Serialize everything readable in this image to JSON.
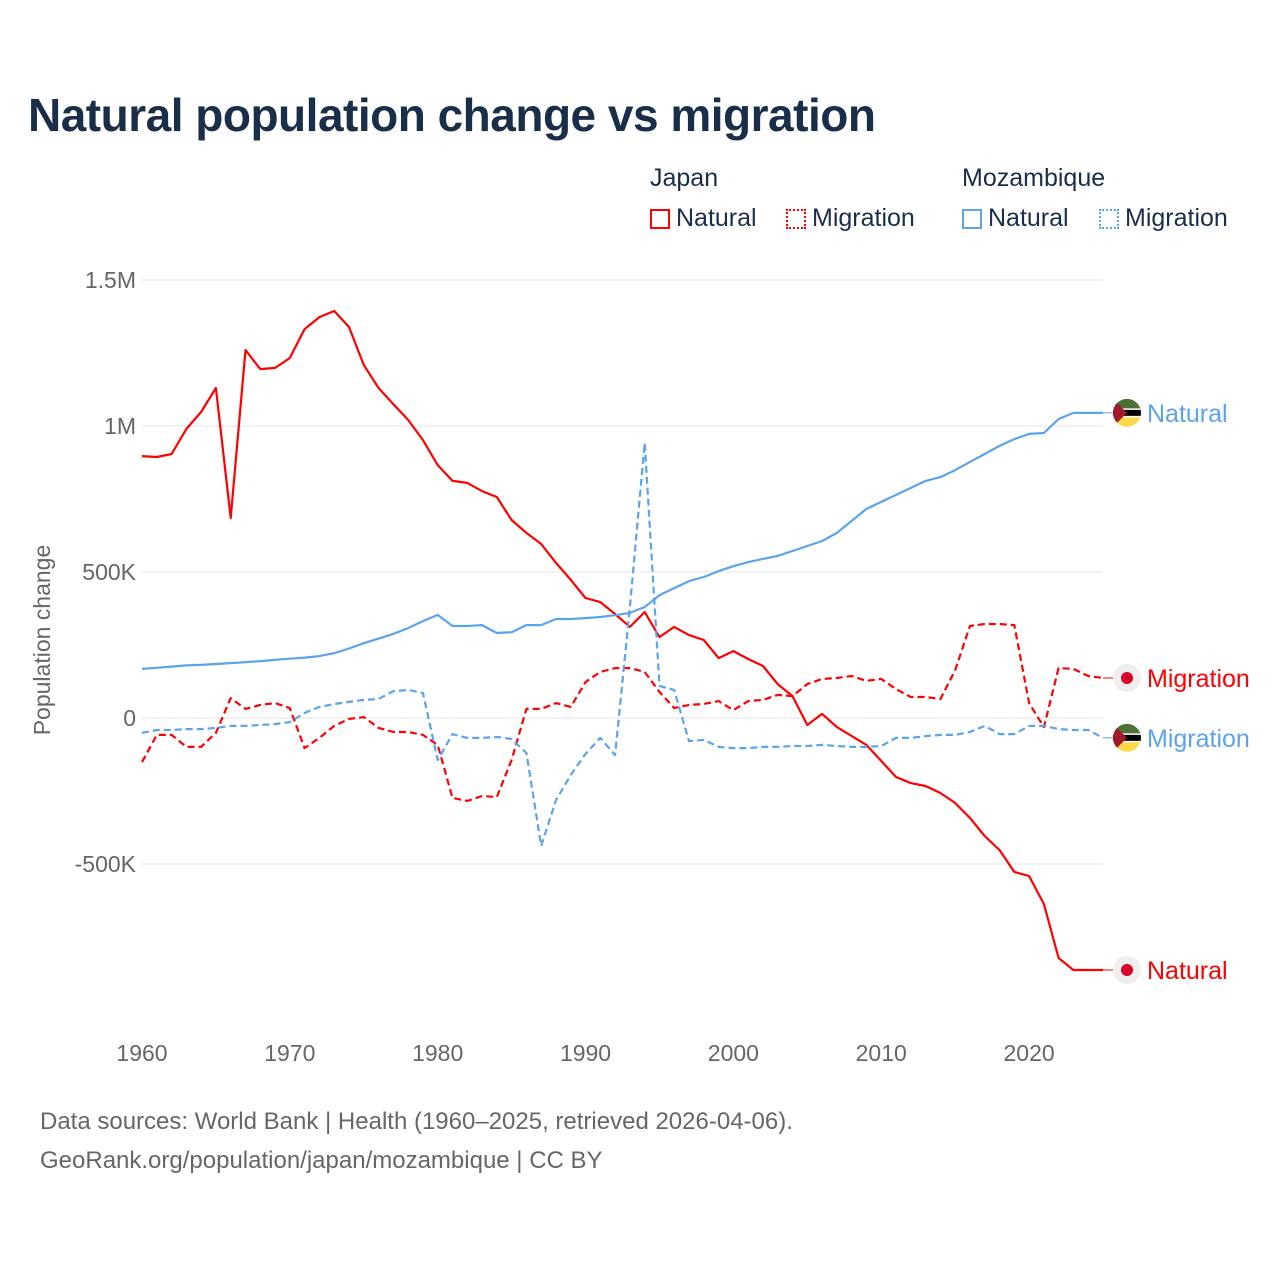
{
  "chart_data": {
    "type": "line",
    "title": "Natural population change vs migration",
    "xlabel": "",
    "ylabel": "Population change",
    "value_unit": "thousands",
    "xlim": [
      1960,
      2025
    ],
    "ylim": [
      -1000,
      1500
    ],
    "grid": true,
    "yticks": [
      {
        "v": 1500,
        "label": "1.5M"
      },
      {
        "v": 1000,
        "label": "1M"
      },
      {
        "v": 500,
        "label": "500K"
      },
      {
        "v": 0,
        "label": "0"
      },
      {
        "v": -500,
        "label": "-500K"
      }
    ],
    "xticks": [
      1960,
      1970,
      1980,
      1990,
      2000,
      2010,
      2020
    ],
    "legend": {
      "placement": "top-right",
      "groups": [
        {
          "name": "Japan",
          "items": [
            "Natural",
            "Migration"
          ]
        },
        {
          "name": "Mozambique",
          "items": [
            "Natural",
            "Migration"
          ]
        }
      ]
    },
    "start_year": 1960,
    "series": [
      {
        "id": "japan-natural",
        "country": "Japan",
        "name": "Natural",
        "color": "#ff0000",
        "dash": false,
        "flag": "japan",
        "values": [
          897,
          894,
          904,
          990,
          1048,
          1130,
          685,
          1260,
          1195,
          1199,
          1233,
          1332,
          1373,
          1394,
          1339,
          1209,
          1130,
          1075,
          1021,
          952,
          866,
          812,
          805,
          777,
          757,
          678,
          634,
          596,
          531,
          473,
          411,
          397,
          356,
          312,
          363,
          277,
          312,
          284,
          267,
          205,
          229,
          202,
          178,
          116,
          75,
          -24,
          14,
          -31,
          -62,
          -92,
          -147,
          -202,
          -223,
          -233,
          -257,
          -291,
          -342,
          -404,
          -452,
          -527,
          -541,
          -637,
          -822,
          -863,
          -863,
          -863
        ]
      },
      {
        "id": "japan-migration",
        "country": "Japan",
        "name": "Migration",
        "color": "#ff0000",
        "dash": true,
        "flag": "japan",
        "values": [
          -151,
          -58,
          -58,
          -99,
          -99,
          -51,
          68,
          31,
          45,
          51,
          34,
          -103,
          -68,
          -27,
          -3,
          3,
          -34,
          -48,
          -48,
          -58,
          -92,
          -274,
          -284,
          -267,
          -271,
          -144,
          31,
          31,
          51,
          38,
          123,
          158,
          171,
          171,
          158,
          89,
          34,
          45,
          48,
          58,
          27,
          58,
          62,
          79,
          75,
          116,
          134,
          137,
          144,
          127,
          134,
          99,
          72,
          72,
          65,
          164,
          315,
          322,
          322,
          318,
          51,
          -31,
          171,
          168,
          144,
          137
        ]
      },
      {
        "id": "mozambique-natural",
        "country": "Mozambique",
        "name": "Natural",
        "color": "#5ba3ea",
        "dash": false,
        "flag": "mozambique",
        "values": [
          168,
          172,
          176,
          180,
          182,
          185,
          188,
          191,
          195,
          199,
          203,
          207,
          212,
          222,
          238,
          256,
          272,
          288,
          308,
          332,
          353,
          315,
          315,
          318,
          291,
          294,
          318,
          318,
          339,
          339,
          342,
          346,
          352,
          360,
          380,
          421,
          445,
          469,
          483,
          503,
          520,
          534,
          545,
          555,
          572,
          589,
          606,
          634,
          675,
          716,
          740,
          764,
          788,
          812,
          825,
          849,
          877,
          904,
          932,
          955,
          973,
          976,
          1024,
          1045,
          1045,
          1045
        ]
      },
      {
        "id": "mozambique-migration",
        "country": "Mozambique",
        "name": "Migration",
        "color": "#5ba3ea",
        "dash": true,
        "flag": "mozambique",
        "values": [
          -51,
          -41,
          -41,
          -38,
          -38,
          -34,
          -27,
          -27,
          -24,
          -21,
          -14,
          17,
          38,
          48,
          55,
          62,
          65,
          92,
          96,
          86,
          -144,
          -55,
          -68,
          -68,
          -65,
          -72,
          -120,
          -438,
          -281,
          -195,
          -123,
          -68,
          -127,
          380,
          942,
          110,
          96,
          -79,
          -75,
          -99,
          -103,
          -103,
          -99,
          -99,
          -96,
          -96,
          -92,
          -96,
          -99,
          -99,
          -96,
          -68,
          -68,
          -62,
          -58,
          -58,
          -48,
          -27,
          -55,
          -55,
          -27,
          -27,
          -38,
          -41,
          -41,
          -68
        ]
      }
    ]
  },
  "source": {
    "line1": "Data sources: World Bank | Health (1960–2025, retrieved 2026-04-06).",
    "line2": "GeoRank.org/population/japan/mozambique | CC BY"
  },
  "colors": {
    "japan": "#ff0000",
    "mozambique": "#5ba3ea",
    "text": "#1a2e4a",
    "grid": "#e6e6e6"
  }
}
